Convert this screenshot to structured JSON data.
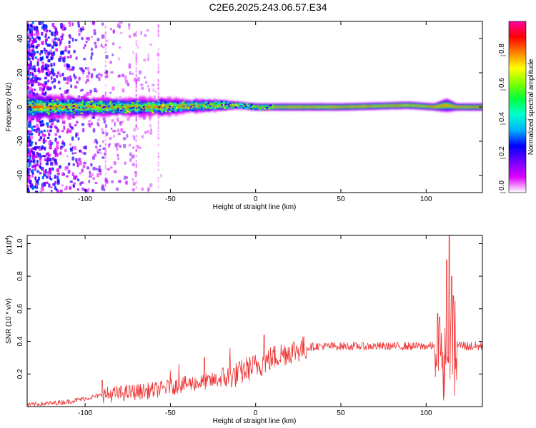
{
  "title": "C2E6.2025.243.06.57.E34",
  "chart_data": [
    {
      "type": "heatmap",
      "xlabel": "Height of straight line (km)",
      "ylabel": "Frequency (Hz)",
      "xlim": [
        -134,
        133
      ],
      "ylim": [
        -50,
        50
      ],
      "xticks": [
        -100,
        -50,
        0,
        50,
        100
      ],
      "yticks": [
        -40,
        -20,
        0,
        20,
        40
      ],
      "colorbar": {
        "label": "Normalized spectral amplitude",
        "range": [
          0,
          1
        ],
        "ticks": [
          "0.0",
          "0.2",
          "0.4",
          "0.6",
          "0.8"
        ],
        "colors": [
          "#ffffff",
          "#e000ff",
          "#7000ff",
          "#0000ff",
          "#00b0ff",
          "#00ffd0",
          "#00ff40",
          "#80ff00",
          "#ffff00",
          "#ff8000",
          "#ff0000",
          "#ff00a0"
        ]
      },
      "band_center_hz": [
        [
          -134,
          0
        ],
        [
          -110,
          0
        ],
        [
          -90,
          0
        ],
        [
          -60,
          0
        ],
        [
          -40,
          0.5
        ],
        [
          -20,
          1
        ],
        [
          -10,
          1
        ],
        [
          0,
          0
        ],
        [
          50,
          0
        ],
        [
          90,
          1
        ],
        [
          105,
          0
        ],
        [
          112,
          1
        ],
        [
          118,
          0
        ],
        [
          133,
          0
        ]
      ],
      "band_halfwidth_hz": [
        [
          -134,
          7
        ],
        [
          -110,
          6
        ],
        [
          -90,
          5
        ],
        [
          -60,
          5
        ],
        [
          -40,
          4
        ],
        [
          -20,
          3
        ],
        [
          -10,
          2
        ],
        [
          0,
          2
        ],
        [
          50,
          2
        ],
        [
          90,
          2
        ],
        [
          105,
          2
        ],
        [
          112,
          4
        ],
        [
          118,
          2
        ],
        [
          133,
          2
        ]
      ],
      "scatter_region_km": [
        -134,
        -55
      ]
    },
    {
      "type": "line",
      "xlabel": "Height of straight line (km)",
      "ylabel": "SNR (10 * v/v)",
      "multiplier": "(x10^4)",
      "xlim": [
        -134,
        133
      ],
      "ylim": [
        0,
        1.05
      ],
      "xticks": [
        -100,
        -50,
        0,
        50,
        100
      ],
      "yticks": [
        0.2,
        0.4,
        0.6,
        0.8,
        1.0
      ],
      "color": "#ee3333",
      "trend": [
        [
          -134,
          0.01
        ],
        [
          -120,
          0.02
        ],
        [
          -110,
          0.03
        ],
        [
          -100,
          0.05
        ],
        [
          -90,
          0.07
        ],
        [
          -80,
          0.08
        ],
        [
          -70,
          0.09
        ],
        [
          -60,
          0.1
        ],
        [
          -50,
          0.12
        ],
        [
          -40,
          0.14
        ],
        [
          -30,
          0.15
        ],
        [
          -20,
          0.17
        ],
        [
          -10,
          0.2
        ],
        [
          -5,
          0.23
        ],
        [
          0,
          0.25
        ],
        [
          5,
          0.27
        ],
        [
          10,
          0.3
        ],
        [
          15,
          0.32
        ],
        [
          20,
          0.34
        ],
        [
          25,
          0.35
        ],
        [
          30,
          0.36
        ],
        [
          35,
          0.37
        ],
        [
          40,
          0.37
        ],
        [
          50,
          0.37
        ],
        [
          60,
          0.37
        ],
        [
          70,
          0.37
        ],
        [
          80,
          0.37
        ],
        [
          90,
          0.37
        ],
        [
          100,
          0.37
        ],
        [
          105,
          0.37
        ],
        [
          108,
          0.38
        ],
        [
          110,
          0.3
        ],
        [
          112,
          0.4
        ],
        [
          114,
          0.28
        ],
        [
          116,
          0.35
        ],
        [
          118,
          0.38
        ],
        [
          125,
          0.37
        ],
        [
          133,
          0.37
        ]
      ],
      "peaks": [
        [
          -90,
          0.16
        ],
        [
          -50,
          0.22
        ],
        [
          -45,
          0.26
        ],
        [
          -30,
          0.3
        ],
        [
          -15,
          0.36
        ],
        [
          5,
          0.44
        ],
        [
          108,
          0.55
        ],
        [
          112,
          0.9
        ],
        [
          113.5,
          1.05
        ],
        [
          115,
          0.8
        ],
        [
          116,
          0.68
        ]
      ]
    }
  ]
}
